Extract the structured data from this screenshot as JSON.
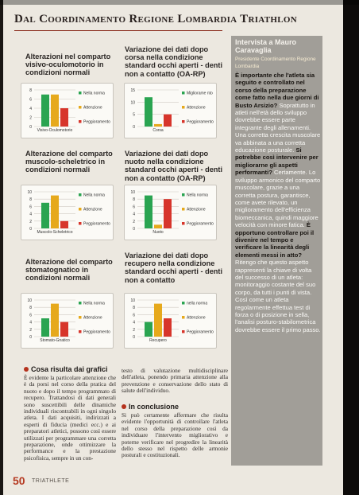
{
  "header": {
    "title": "Dal Coordinamento Regione Lombardia Triathlon"
  },
  "legend_labels": {
    "norma": "Nella norma",
    "attenzione": "Attenzione",
    "peggioramento": "Peggioramento"
  },
  "colors": {
    "norma": "#2aa451",
    "attenzione": "#e6a91c",
    "peggioramento": "#d7352b"
  },
  "chart_data": [
    {
      "type": "bar",
      "title": "Alterazioni nel comparto visivo-oculomotorio in condizioni normali",
      "categories": [
        "Visivo-Oculomotorio"
      ],
      "series": [
        {
          "name": "Nella norma",
          "values": [
            7
          ]
        },
        {
          "name": "Attenzione",
          "values": [
            7
          ]
        },
        {
          "name": "Peggioramento",
          "values": [
            4
          ]
        }
      ],
      "ylim": [
        0,
        8
      ],
      "yticks": [
        0,
        2,
        4,
        6,
        8
      ]
    },
    {
      "type": "bar",
      "title": "Variazione dei dati dopo corsa nella condizione standard occhi aperti - denti non a contatto (OA-RP)",
      "categories": [
        "Corsa"
      ],
      "series": [
        {
          "name": "Migliorame nto",
          "values": [
            12
          ]
        },
        {
          "name": "Attenzione",
          "values": [
            1
          ]
        },
        {
          "name": "Peggioramento",
          "values": [
            5
          ]
        }
      ],
      "ylim": [
        0,
        15
      ],
      "yticks": [
        0,
        5,
        10,
        15
      ]
    },
    {
      "type": "bar",
      "title": "Alterazione del comparto muscolo-scheletrico in condizioni normali",
      "categories": [
        "Muscolo-Scheletrico"
      ],
      "series": [
        {
          "name": "Nella norma",
          "values": [
            7
          ]
        },
        {
          "name": "Attenzione",
          "values": [
            9
          ]
        },
        {
          "name": "Peggioramento",
          "values": [
            2
          ]
        }
      ],
      "ylim": [
        0,
        10
      ],
      "yticks": [
        0,
        2,
        4,
        6,
        8,
        10
      ]
    },
    {
      "type": "bar",
      "title": "Variazione dei dati dopo nuoto nella condizione standard occhi aperti - denti non a contatto (OA-RP)",
      "categories": [
        "Nuoto"
      ],
      "series": [
        {
          "name": "Nella norma",
          "values": [
            9
          ]
        },
        {
          "name": "Attenzione",
          "values": [
            1
          ]
        },
        {
          "name": "Peggioramento",
          "values": [
            8
          ]
        }
      ],
      "ylim": [
        0,
        10
      ],
      "yticks": [
        0,
        2,
        4,
        6,
        8,
        10
      ]
    },
    {
      "type": "bar",
      "title": "Alterazione del comparto stomatognatico in condizioni normali",
      "categories": [
        "Stomato-Gnatico"
      ],
      "series": [
        {
          "name": "Nella norma",
          "values": [
            5
          ]
        },
        {
          "name": "Attenzione",
          "values": [
            9
          ]
        },
        {
          "name": "Peggioramento",
          "values": [
            4
          ]
        }
      ],
      "ylim": [
        0,
        10
      ],
      "yticks": [
        0,
        2,
        4,
        6,
        8,
        10
      ]
    },
    {
      "type": "bar",
      "title": "Variazione dei dati dopo recupero nella condizione standard occhi aperti - denti non a contatto",
      "categories": [
        "Recupero"
      ],
      "series": [
        {
          "name": "nella norma",
          "values": [
            4
          ]
        },
        {
          "name": "Attenzione",
          "values": [
            9
          ]
        },
        {
          "name": "Peggioramento",
          "values": [
            5
          ]
        }
      ],
      "ylim": [
        0,
        10
      ],
      "yticks": [
        0,
        2,
        4,
        6,
        8,
        10
      ]
    }
  ],
  "sidebar": {
    "heading": "Intervista a Mauro Caravaglia",
    "subheading": "Presidente Coordinamento Regione Lombardia",
    "q1": "È importante che l'atleta sia seguito e controllato nel corso della preparazione come fatto nella due giorni di Busto Arsizio?",
    "a1": "Soprattutto in atleti nell'età dello sviluppo dovrebbe essere parte integrante degli allenamenti. Una corretta crescita muscolare va abbinata a una corretta educazione posturale.",
    "q2": "Si potrebbe così intervenire per migliorarne gli aspetti performanti?",
    "a2": "Certamente. Lo sviluppo armonico del comparto muscolare, grazie a una corretta postura, garantisce, come avete rilevato, un miglioramento dell'efficienza biomeccanica, quindi maggiore velocità con minore fatica.",
    "q3": "È opportuno controllare poi il divenire nel tempo e verificare la linearità degli elementi messi in atto?",
    "a3": "Ritengo che questo aspetto rappresenti la chiave di volta del successo di un atleta: monitoraggio costante del suo corpo, da tutti i punti di vista. Così come un atleta regolarmente effettua test di forza o di posizione in sella, l'analisi posturo-stabilometrica dovrebbe essere il primo passo."
  },
  "section1": {
    "title": "Cosa risulta dai grafici",
    "text": "È evidente la particolare attenzione che è da porsi nel corso della pratica del nuoto e dopo il tempo programmato di recupero. Trattandosi di dati generali sono suscettibili delle dinamiche individuali riscontrabili in ogni singolo atleta. I dati acquisiti, indirizzati a esperti di fiducia (medici ecc.) e ai preparatori atletici, possono così essere utilizzati per programmare una corretta preparazione, onde ottimizzare la performance e la prestazione psicofisica, sempre in un con-",
    "text_cont": "testo di valutazione multidisciplinare dell'atleta, ponendo primaria attenzione alla prevenzione e conservazione dello stato di salute dell'individuo."
  },
  "section2": {
    "title": "In conclusione",
    "text": "Si può certamente affermare che risulta evidente l'opportunità di controllare l'atleta nel corso della preparazione così da individuare l'intervento migliorativo e poterne verificare nel progredire la linearità dello stesso nel rispetto delle armonie posturali e costituzionali."
  },
  "footer": {
    "page_number": "50",
    "magazine": "TRIATHLETE"
  }
}
